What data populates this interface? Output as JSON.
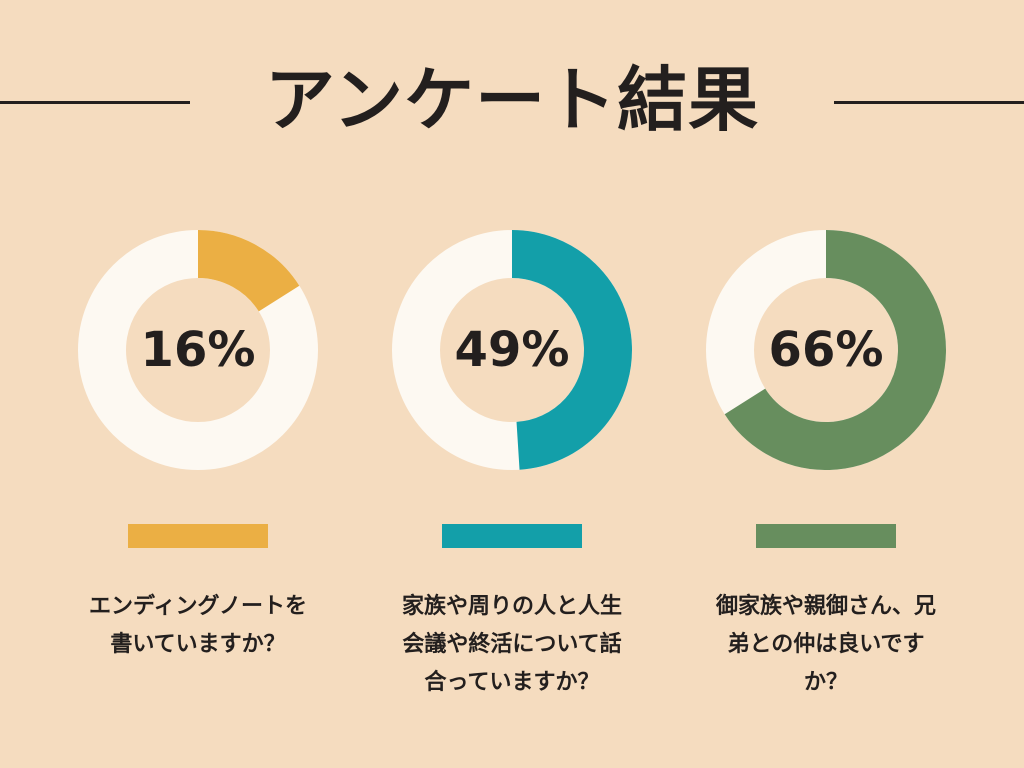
{
  "page": {
    "title": "アンケート結果",
    "background": "#f5dcbf",
    "ring_background": "#fdf9f2"
  },
  "chart_data": [
    {
      "type": "pie",
      "values": [
        16,
        84
      ],
      "percent_label": "16%",
      "question": "エンディングノートを\n書いていますか？",
      "color": "#ebaf44"
    },
    {
      "type": "pie",
      "values": [
        49,
        51
      ],
      "percent_label": "49%",
      "question": "家族や周りの人と人生\n会議や終活について話\n合っていますか？",
      "color": "#139fa9"
    },
    {
      "type": "pie",
      "values": [
        66,
        34
      ],
      "percent_label": "66%",
      "question": "御家族や親御さん、兄\n弟との仲は良いです\nか？",
      "color": "#678e5e"
    }
  ]
}
